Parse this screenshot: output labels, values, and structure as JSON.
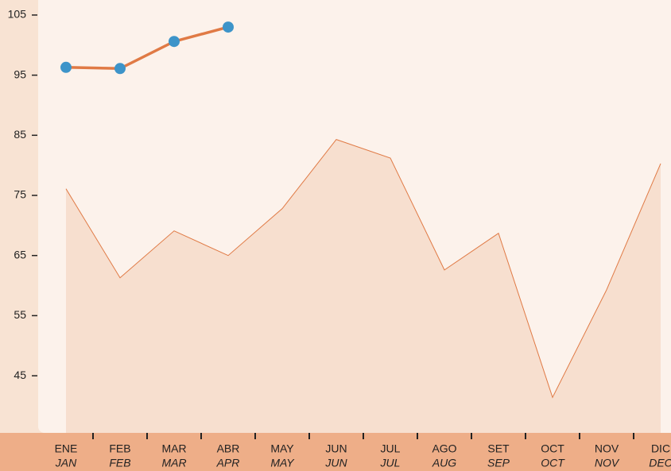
{
  "chart_data": {
    "type": "line",
    "categories": [
      "ENE",
      "FEB",
      "MAR",
      "ABR",
      "MAY",
      "JUN",
      "JUL",
      "AGO",
      "SET",
      "OCT",
      "NOV",
      "DIC"
    ],
    "categories_secondary": [
      "JAN",
      "FEB",
      "MAR",
      "APR",
      "MAY",
      "JUN",
      "JUL",
      "AUG",
      "SEP",
      "OCT",
      "NOV",
      "DEC"
    ],
    "series": [
      {
        "style": "area",
        "color": "#e07a45",
        "fill": "#f7dfcf",
        "values": [
          76.1,
          61.3,
          69.1,
          65,
          72.8,
          84.3,
          81.2,
          62.6,
          68.7,
          41.4,
          59.3,
          80.3
        ]
      },
      {
        "style": "line",
        "color": "#e07a45",
        "marker_color": "#3d94c9",
        "values": [
          96.3,
          96.1,
          100.6,
          103,
          null,
          null,
          null,
          null,
          null,
          null,
          null,
          null
        ]
      }
    ],
    "ylim": [
      35.5,
      107.5
    ],
    "yticks": [
      45,
      55,
      65,
      75,
      85,
      95,
      105
    ]
  }
}
